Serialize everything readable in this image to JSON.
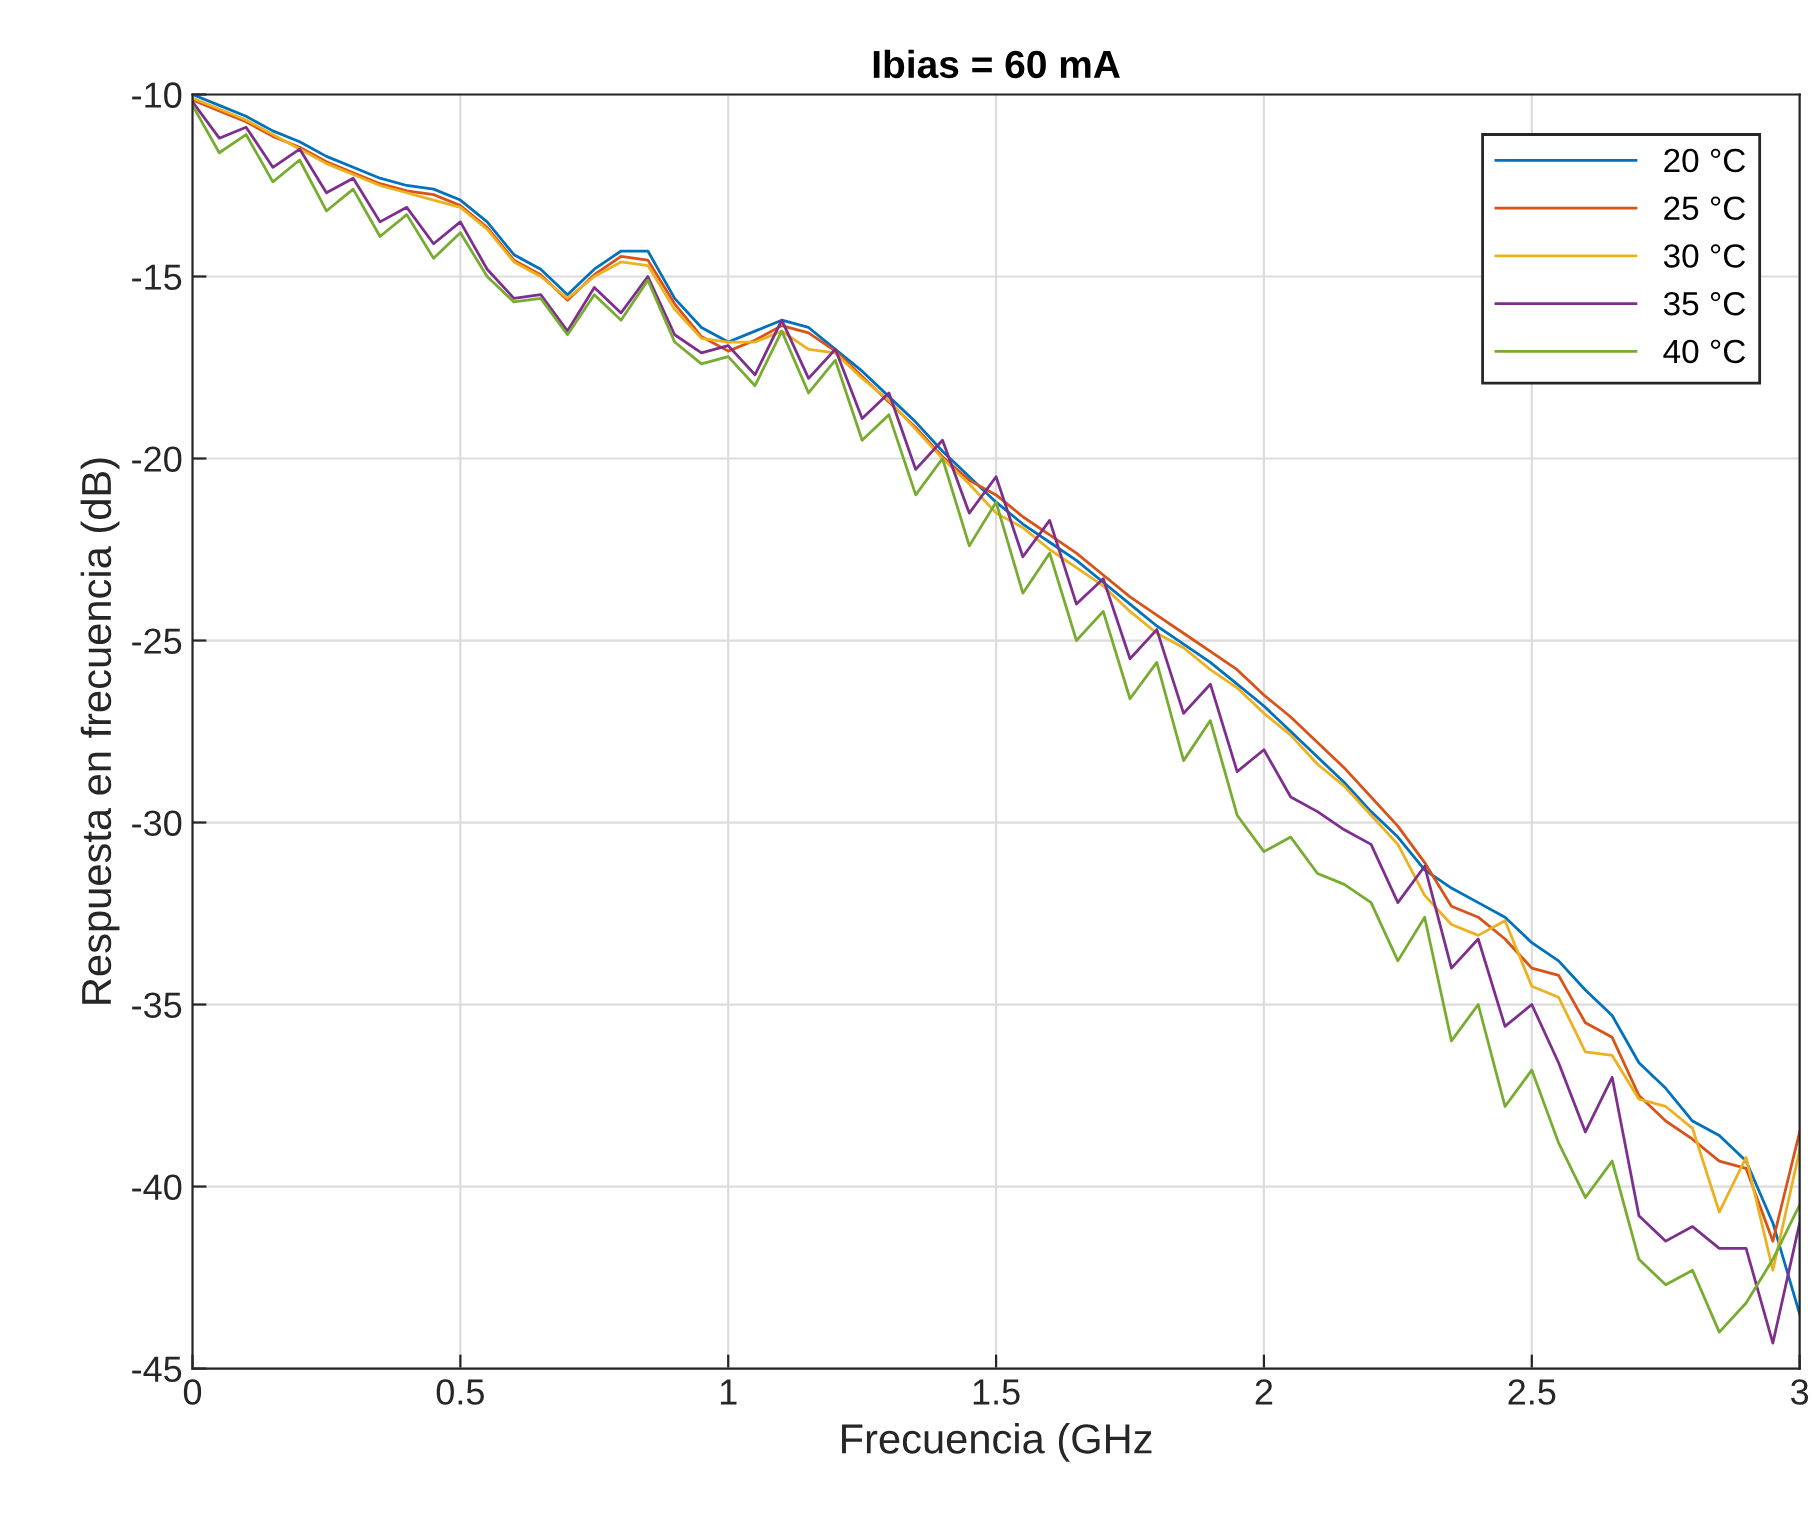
{
  "chart_data": {
    "type": "line",
    "title": "Ibias = 60 mA",
    "xlabel": "Frecuencia (GHz",
    "ylabel": "Respuesta en frecuencia (dB)",
    "x": [
      0,
      0.05,
      0.1,
      0.15,
      0.2,
      0.25,
      0.3,
      0.35,
      0.4,
      0.45,
      0.5,
      0.55,
      0.6,
      0.65,
      0.7,
      0.75,
      0.8,
      0.85,
      0.9,
      0.95,
      1.0,
      1.05,
      1.1,
      1.15,
      1.2,
      1.25,
      1.3,
      1.35,
      1.4,
      1.45,
      1.5,
      1.55,
      1.6,
      1.65,
      1.7,
      1.75,
      1.8,
      1.85,
      1.9,
      1.95,
      2.0,
      2.05,
      2.1,
      2.15,
      2.2,
      2.25,
      2.3,
      2.35,
      2.4,
      2.45,
      2.5,
      2.55,
      2.6,
      2.65,
      2.7,
      2.75,
      2.8,
      2.85,
      2.9,
      2.95,
      3.0
    ],
    "series": [
      {
        "name": "20 °C",
        "color": "#0072bd",
        "values": [
          -10,
          -10.3,
          -10.6,
          -11.0,
          -11.3,
          -11.7,
          -12.0,
          -12.3,
          -12.5,
          -12.6,
          -12.9,
          -13.5,
          -14.4,
          -14.8,
          -15.5,
          -14.8,
          -14.3,
          -14.3,
          -15.6,
          -16.4,
          -16.8,
          -16.5,
          -16.2,
          -16.4,
          -17.0,
          -17.6,
          -18.3,
          -19.0,
          -19.8,
          -20.5,
          -21.2,
          -21.8,
          -22.3,
          -22.8,
          -23.4,
          -24.0,
          -24.6,
          -25.1,
          -25.6,
          -26.2,
          -26.8,
          -27.5,
          -28.2,
          -28.9,
          -29.7,
          -30.4,
          -31.3,
          -31.8,
          -32.2,
          -32.6,
          -33.3,
          -33.8,
          -34.6,
          -35.3,
          -36.6,
          -37.3,
          -38.2,
          -38.6,
          -39.3,
          -41.0,
          -43.5
        ]
      },
      {
        "name": "25 °C",
        "color": "#d95319",
        "values": [
          -10.15,
          -10.45,
          -10.75,
          -11.15,
          -11.45,
          -11.85,
          -12.15,
          -12.45,
          -12.65,
          -12.75,
          -13.05,
          -13.65,
          -14.55,
          -14.95,
          -15.65,
          -14.95,
          -14.45,
          -14.55,
          -15.75,
          -16.65,
          -17.05,
          -16.75,
          -16.35,
          -16.55,
          -17.05,
          -17.75,
          -18.45,
          -19.15,
          -19.95,
          -20.6,
          -21.0,
          -21.6,
          -22.1,
          -22.6,
          -23.2,
          -23.8,
          -24.3,
          -24.8,
          -25.3,
          -25.8,
          -26.5,
          -27.1,
          -27.8,
          -28.5,
          -29.3,
          -30.1,
          -31.1,
          -32.3,
          -32.6,
          -33.2,
          -34.0,
          -34.2,
          -35.5,
          -35.9,
          -37.5,
          -38.2,
          -38.7,
          -39.3,
          -39.5,
          -41.5,
          -38.5
        ]
      },
      {
        "name": "30 °C",
        "color": "#edb120",
        "values": [
          -10.1,
          -10.4,
          -10.7,
          -11.1,
          -11.5,
          -11.9,
          -12.2,
          -12.5,
          -12.7,
          -12.9,
          -13.1,
          -13.7,
          -14.6,
          -15.0,
          -15.6,
          -15.0,
          -14.6,
          -14.7,
          -15.9,
          -16.7,
          -16.8,
          -16.8,
          -16.5,
          -17.0,
          -17.1,
          -17.8,
          -18.4,
          -19.2,
          -20.0,
          -20.7,
          -21.5,
          -21.9,
          -22.5,
          -23.0,
          -23.5,
          -24.2,
          -24.8,
          -25.2,
          -25.8,
          -26.3,
          -27.0,
          -27.6,
          -28.4,
          -29.0,
          -29.8,
          -30.6,
          -32.0,
          -32.8,
          -33.1,
          -32.7,
          -34.5,
          -34.8,
          -36.3,
          -36.4,
          -37.6,
          -37.8,
          -38.4,
          -40.7,
          -39.2,
          -42.3,
          -39.0
        ]
      },
      {
        "name": "35 °C",
        "color": "#7e2f8e",
        "values": [
          -10.2,
          -11.2,
          -10.9,
          -12.0,
          -11.5,
          -12.7,
          -12.3,
          -13.5,
          -13.1,
          -14.1,
          -13.5,
          -14.8,
          -15.6,
          -15.5,
          -16.5,
          -15.3,
          -16.0,
          -15.0,
          -16.6,
          -17.1,
          -16.9,
          -17.7,
          -16.2,
          -17.8,
          -17.0,
          -18.9,
          -18.2,
          -20.3,
          -19.5,
          -21.5,
          -20.5,
          -22.7,
          -21.7,
          -24.0,
          -23.3,
          -25.5,
          -24.7,
          -27.0,
          -26.2,
          -28.6,
          -28.0,
          -29.3,
          -29.7,
          -30.2,
          -30.6,
          -32.2,
          -31.2,
          -34.0,
          -33.2,
          -35.6,
          -35.0,
          -36.6,
          -38.5,
          -37.0,
          -40.8,
          -41.5,
          -41.1,
          -41.7,
          -41.7,
          -44.3,
          -41.0
        ]
      },
      {
        "name": "40 °C",
        "color": "#77ac30",
        "values": [
          -10.3,
          -11.6,
          -11.1,
          -12.4,
          -11.8,
          -13.2,
          -12.6,
          -13.9,
          -13.3,
          -14.5,
          -13.8,
          -15.0,
          -15.7,
          -15.6,
          -16.6,
          -15.5,
          -16.2,
          -15.1,
          -16.8,
          -17.4,
          -17.2,
          -18.0,
          -16.5,
          -18.2,
          -17.3,
          -19.5,
          -18.8,
          -21.0,
          -20.0,
          -22.4,
          -21.2,
          -23.7,
          -22.6,
          -25.0,
          -24.2,
          -26.6,
          -25.6,
          -28.3,
          -27.2,
          -29.8,
          -30.8,
          -30.4,
          -31.4,
          -31.7,
          -32.2,
          -33.8,
          -32.6,
          -36.0,
          -35.0,
          -37.8,
          -36.8,
          -38.8,
          -40.3,
          -39.3,
          -42.0,
          -42.7,
          -42.3,
          -44.0,
          -43.2,
          -42.0,
          -40.5
        ]
      }
    ],
    "xlim": [
      0,
      3
    ],
    "ylim": [
      -45,
      -10
    ],
    "xticks": [
      0,
      0.5,
      1,
      1.5,
      2,
      2.5,
      3
    ],
    "yticks": [
      -45,
      -40,
      -35,
      -30,
      -25,
      -20,
      -15,
      -10
    ],
    "grid": true,
    "legend": "top right",
    "marker": "none",
    "line_style": "solid"
  }
}
